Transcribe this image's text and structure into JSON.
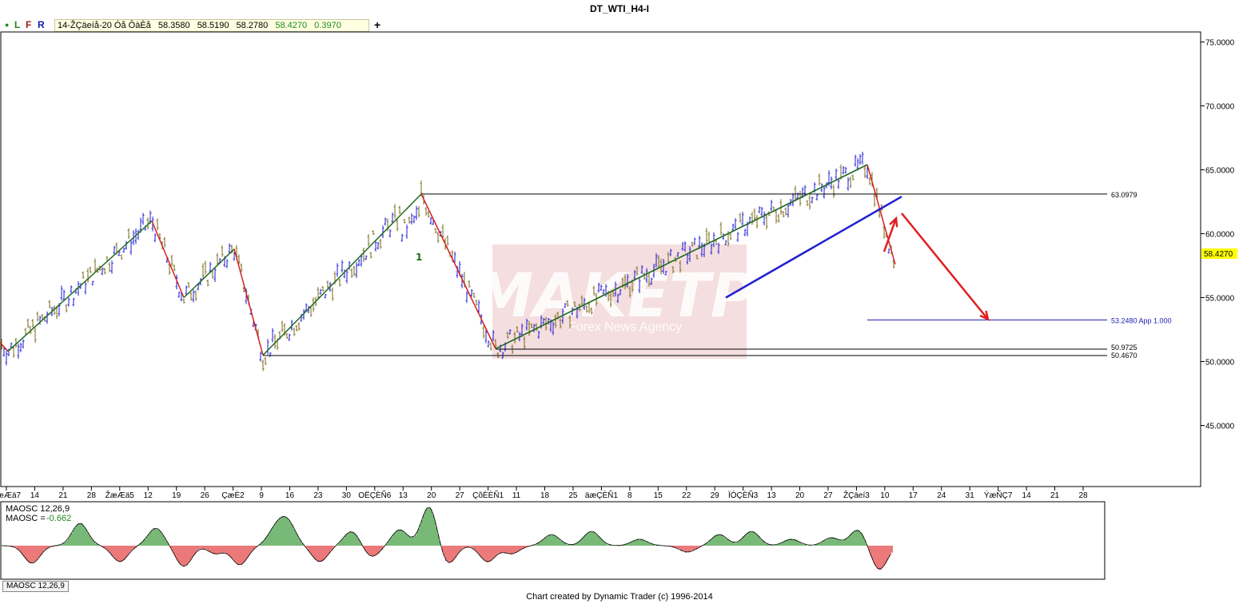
{
  "window": {
    "title": "DT_WTI_H4-I"
  },
  "toolbar": {
    "buttons": [
      "L",
      "F",
      "R"
    ],
    "ohlc": {
      "label": "14-ŽÇäeíå-20 Óå ÔàÈå",
      "open": "58.3580",
      "high": "58.5190",
      "low": "58.2780",
      "close": "58.4270",
      "change": "0.3970"
    },
    "plus": "+"
  },
  "watermark": {
    "main": "MAKETP",
    "sub": "Forex News Agency"
  },
  "chart_data": {
    "type": "candlestick",
    "instrument": "DT_WTI_H4-I",
    "ylim": [
      40,
      76
    ],
    "y_ticks": [
      "75.0000",
      "70.0000",
      "65.0000",
      "60.0000",
      "55.0000",
      "50.0000",
      "45.0000"
    ],
    "x_ticks": [
      "ŽæÆä7",
      "14",
      "21",
      "28",
      "ŽæÆä5",
      "12",
      "19",
      "26",
      "ÇæÈ2",
      "9",
      "16",
      "23",
      "30",
      "OËÇÈÑ6",
      "13",
      "20",
      "27",
      "ÇõÈÈÑ1",
      "11",
      "18",
      "25",
      "äæÇÈÑ1",
      "8",
      "15",
      "22",
      "29",
      "ÏÓÇÈÑ3",
      "13",
      "20",
      "27",
      "ŽÇäeí3",
      "10",
      "17",
      "24",
      "31",
      "ÝæÑÇ7",
      "14",
      "21",
      "28"
    ],
    "current_price": "58.4270",
    "levels": [
      {
        "value": "63.0979",
        "label": "63.0979"
      },
      {
        "value": "53.2480",
        "label": "53.2480 App 1.000"
      },
      {
        "value": "50.9725",
        "label": "50.9725"
      },
      {
        "value": "50.4670",
        "label": "50.4670"
      }
    ],
    "swing_label": "1",
    "swings": [
      [
        0,
        51.5
      ],
      [
        10,
        50.8
      ],
      [
        190,
        61.0
      ],
      [
        230,
        55.0
      ],
      [
        293,
        58.8
      ],
      [
        329,
        50.5
      ],
      [
        527,
        63.1
      ],
      [
        620,
        51.0
      ],
      [
        1085,
        65.4
      ],
      [
        1120,
        57.6
      ]
    ],
    "channel": {
      "from": [
        908,
        55.0
      ],
      "to": [
        1128,
        62.9
      ]
    },
    "projection_arrows": [
      {
        "from": [
          1106,
          58.6
        ],
        "to": [
          1121,
          61.2
        ],
        "color": "#e02020"
      },
      {
        "from": [
          1128,
          61.6
        ],
        "to": [
          1236,
          53.3
        ],
        "color": "#e02020"
      }
    ],
    "colors": {
      "up_bar": "#1b1bd6",
      "down_bar": "#7a6a1a",
      "bull_swing": "#1f6b1f",
      "bear_swing": "#d22222",
      "channel": "#2020d0"
    },
    "oscillator": {
      "name": "MAOSC 12,26,9",
      "value_label": "MAOSC =",
      "value": "-0.662",
      "tab": "MAOSC 12,26,9",
      "colors": {
        "positive": "#1e8a1e",
        "negative": "#e02020"
      }
    }
  },
  "footer": {
    "credit": "Chart created by Dynamic Trader  (c) 1996-2014"
  }
}
